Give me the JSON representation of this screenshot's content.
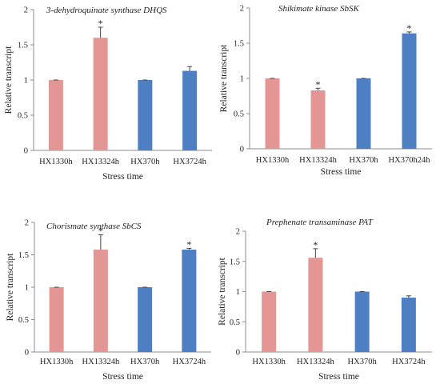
{
  "chart_data": [
    {
      "type": "bar",
      "title": "3-dehydroquinate synthase DHQS",
      "xlabel": "Stress time",
      "ylabel": "Relative transcript",
      "ylim": [
        0,
        2
      ],
      "yticks": [
        "0",
        "0.5",
        "1",
        "1.5",
        "2"
      ],
      "categories": [
        "HX1330h",
        "HX13324h",
        "HX370h",
        "HX3724h"
      ],
      "values": [
        1.0,
        1.6,
        1.0,
        1.13
      ],
      "errors": [
        0.0,
        0.15,
        0.0,
        0.06
      ],
      "significant": [
        false,
        true,
        false,
        false
      ],
      "colors": [
        "#e39694",
        "#e39694",
        "#4f7fc3",
        "#4f7fc3"
      ]
    },
    {
      "type": "bar",
      "title": "Shikimate kinase SbSK",
      "xlabel": "Stress time",
      "ylabel": "Relative transcript",
      "ylim": [
        0,
        2
      ],
      "yticks": [
        "0",
        "0.5",
        "1",
        "1.5",
        "2"
      ],
      "categories": [
        "HX1330h",
        "HX13324h",
        "HX370h",
        "HX370h24h"
      ],
      "values": [
        1.0,
        0.83,
        1.0,
        1.64
      ],
      "errors": [
        0.0,
        0.03,
        0.0,
        0.02
      ],
      "significant": [
        false,
        true,
        false,
        true
      ],
      "colors": [
        "#e39694",
        "#e39694",
        "#4f7fc3",
        "#4f7fc3"
      ]
    },
    {
      "type": "bar",
      "title": "Chorismate synthase SbCS",
      "xlabel": "Stress time",
      "ylabel": "Relative transcript",
      "ylim": [
        0,
        2
      ],
      "yticks": [
        "0",
        "0.5",
        "1",
        "1.5",
        "2"
      ],
      "categories": [
        "HX1330h",
        "HX13324h",
        "HX370h",
        "HX3724h"
      ],
      "values": [
        1.0,
        1.58,
        1.0,
        1.58
      ],
      "errors": [
        0.0,
        0.23,
        0.0,
        0.02
      ],
      "significant": [
        false,
        true,
        false,
        true
      ],
      "colors": [
        "#e39694",
        "#e39694",
        "#4f7fc3",
        "#4f7fc3"
      ]
    },
    {
      "type": "bar",
      "title": "Prephenate transaminase PAT",
      "xlabel": "Stress time",
      "ylabel": "Relative transcript",
      "ylim": [
        0,
        2
      ],
      "yticks": [
        "0",
        "0.5",
        "1",
        "1.5",
        "2"
      ],
      "categories": [
        "HX1330h",
        "HX13324h",
        "HX370h",
        "HX3724h"
      ],
      "values": [
        1.0,
        1.56,
        1.0,
        0.9
      ],
      "errors": [
        0.0,
        0.15,
        0.0,
        0.03
      ],
      "significant": [
        false,
        true,
        false,
        false
      ],
      "colors": [
        "#e39694",
        "#e39694",
        "#4f7fc3",
        "#4f7fc3"
      ]
    }
  ],
  "significance_marker": "*"
}
